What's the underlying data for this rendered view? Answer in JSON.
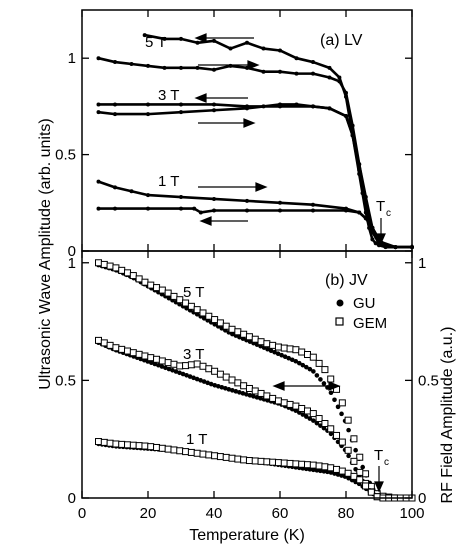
{
  "chart_data": [
    {
      "panel": "(a) LV",
      "type": "line",
      "xlim": [
        0,
        100
      ],
      "ylim": [
        0,
        1.25
      ],
      "yticks": [
        "0",
        "0.5",
        "1"
      ],
      "ylabel": "Ultrasonic Wave Amplitude (arb. units)",
      "annotations": [
        "5 T",
        "3 T",
        "1 T",
        "T",
        "c"
      ],
      "series": [
        {
          "name": "5 T",
          "direction": "cooling",
          "x": [
            19,
            25,
            30,
            35,
            40,
            45,
            50,
            55,
            60,
            65,
            70,
            75,
            78,
            80,
            82,
            84,
            85,
            86,
            87,
            88,
            89,
            90,
            92,
            95,
            100
          ],
          "y": [
            1.12,
            1.1,
            1.1,
            1.08,
            1.09,
            1.05,
            1.08,
            1.05,
            1.04,
            1.0,
            0.98,
            0.95,
            0.9,
            0.8,
            0.6,
            0.4,
            0.3,
            0.2,
            0.12,
            0.06,
            0.04,
            0.03,
            0.02,
            0.02,
            0.02
          ]
        },
        {
          "name": "5 T",
          "direction": "warming",
          "x": [
            5,
            10,
            15,
            20,
            25,
            30,
            35,
            40,
            45,
            50,
            55,
            60,
            65,
            70,
            75,
            78,
            80,
            82,
            84,
            86,
            88,
            90,
            95,
            100
          ],
          "y": [
            1.0,
            0.98,
            0.97,
            0.96,
            0.95,
            0.95,
            0.95,
            0.94,
            0.96,
            0.95,
            0.93,
            0.93,
            0.92,
            0.92,
            0.9,
            0.88,
            0.82,
            0.65,
            0.45,
            0.25,
            0.1,
            0.04,
            0.02,
            0.02
          ]
        },
        {
          "name": "3 T",
          "direction": "cooling",
          "x": [
            5,
            10,
            20,
            30,
            40,
            50,
            60,
            70,
            75,
            80,
            82,
            84,
            86,
            88,
            90,
            95,
            100
          ],
          "y": [
            0.76,
            0.76,
            0.76,
            0.76,
            0.76,
            0.75,
            0.75,
            0.75,
            0.74,
            0.7,
            0.6,
            0.45,
            0.28,
            0.12,
            0.05,
            0.02,
            0.02
          ]
        },
        {
          "name": "3 T",
          "direction": "warming",
          "x": [
            5,
            10,
            20,
            30,
            40,
            50,
            55,
            60,
            65,
            70,
            75,
            80,
            82,
            84,
            86,
            88,
            90,
            95,
            100
          ],
          "y": [
            0.72,
            0.71,
            0.71,
            0.72,
            0.73,
            0.74,
            0.75,
            0.76,
            0.76,
            0.75,
            0.74,
            0.7,
            0.6,
            0.42,
            0.25,
            0.1,
            0.04,
            0.02,
            0.02
          ]
        },
        {
          "name": "1 T",
          "direction": "warming",
          "x": [
            5,
            10,
            15,
            20,
            30,
            40,
            50,
            60,
            70,
            80,
            84,
            86,
            88,
            90,
            92,
            95,
            100
          ],
          "y": [
            0.36,
            0.33,
            0.31,
            0.29,
            0.28,
            0.27,
            0.26,
            0.25,
            0.24,
            0.22,
            0.2,
            0.17,
            0.12,
            0.06,
            0.03,
            0.02,
            0.02
          ]
        },
        {
          "name": "1 T",
          "direction": "cooling",
          "x": [
            5,
            10,
            20,
            30,
            34,
            36,
            40,
            50,
            60,
            70,
            80,
            84,
            86,
            88,
            90,
            92,
            95,
            100
          ],
          "y": [
            0.22,
            0.22,
            0.22,
            0.22,
            0.22,
            0.2,
            0.21,
            0.21,
            0.21,
            0.21,
            0.21,
            0.2,
            0.17,
            0.12,
            0.06,
            0.03,
            0.02,
            0.02
          ]
        }
      ]
    },
    {
      "panel": "(b) JV",
      "type": "scatter",
      "xlim": [
        0,
        100
      ],
      "ylim": [
        0,
        1.05
      ],
      "xticks": [
        "0",
        "20",
        "40",
        "60",
        "80",
        "100"
      ],
      "yticks": [
        "0",
        "0.5",
        "1"
      ],
      "y2ticks": [
        "0",
        "0.5",
        "1"
      ],
      "xlabel": "Temperature (K)",
      "y2label": "RF Field Amplitude (a.u.)",
      "legend": [
        "GU",
        "GEM"
      ],
      "annotations": [
        "5 T",
        "3 T",
        "1 T",
        "T",
        "c"
      ],
      "series": [
        {
          "name": "GU",
          "field": "5 T",
          "x": [
            5,
            10,
            15,
            20,
            25,
            30,
            35,
            40,
            45,
            50,
            55,
            60,
            65,
            70,
            75,
            80,
            83,
            86,
            88,
            90,
            92,
            95,
            100
          ],
          "y": [
            0.99,
            0.97,
            0.94,
            0.9,
            0.86,
            0.82,
            0.78,
            0.74,
            0.7,
            0.67,
            0.64,
            0.61,
            0.58,
            0.54,
            0.46,
            0.32,
            0.2,
            0.1,
            0.04,
            0.01,
            0.0,
            0.0,
            0.0
          ]
        },
        {
          "name": "GEM",
          "field": "5 T",
          "x": [
            5,
            10,
            15,
            20,
            25,
            30,
            35,
            40,
            45,
            50,
            55,
            60,
            65,
            70,
            74,
            78,
            80,
            82,
            84,
            86,
            88,
            90,
            95,
            100
          ],
          "y": [
            1.0,
            0.98,
            0.95,
            0.91,
            0.88,
            0.84,
            0.8,
            0.76,
            0.72,
            0.69,
            0.66,
            0.64,
            0.63,
            0.6,
            0.54,
            0.44,
            0.36,
            0.27,
            0.18,
            0.1,
            0.04,
            0.01,
            0.0,
            0.0
          ]
        },
        {
          "name": "GU",
          "field": "3 T",
          "x": [
            5,
            10,
            20,
            30,
            40,
            50,
            55,
            60,
            65,
            70,
            75,
            80,
            83,
            86,
            88,
            90,
            95,
            100
          ],
          "y": [
            0.66,
            0.63,
            0.58,
            0.53,
            0.48,
            0.44,
            0.42,
            0.4,
            0.37,
            0.33,
            0.28,
            0.2,
            0.12,
            0.05,
            0.02,
            0.0,
            0.0,
            0.0
          ]
        },
        {
          "name": "GEM",
          "field": "3 T",
          "x": [
            5,
            10,
            20,
            30,
            35,
            40,
            50,
            55,
            60,
            65,
            70,
            75,
            80,
            83,
            86,
            88,
            90,
            95,
            100
          ],
          "y": [
            0.67,
            0.64,
            0.6,
            0.56,
            0.57,
            0.54,
            0.47,
            0.44,
            0.41,
            0.39,
            0.36,
            0.3,
            0.22,
            0.14,
            0.06,
            0.02,
            0.0,
            0.0,
            0.0
          ]
        },
        {
          "name": "GU",
          "field": "1 T",
          "x": [
            5,
            10,
            20,
            30,
            40,
            50,
            60,
            70,
            75,
            80,
            84,
            86,
            88,
            90,
            95,
            100
          ],
          "y": [
            0.23,
            0.22,
            0.21,
            0.2,
            0.18,
            0.16,
            0.14,
            0.12,
            0.11,
            0.09,
            0.06,
            0.04,
            0.02,
            0.0,
            0.0,
            0.0
          ]
        },
        {
          "name": "GEM",
          "field": "1 T",
          "x": [
            5,
            10,
            20,
            30,
            40,
            50,
            60,
            70,
            75,
            80,
            84,
            86,
            88,
            90,
            95,
            100
          ],
          "y": [
            0.24,
            0.23,
            0.22,
            0.2,
            0.18,
            0.16,
            0.15,
            0.14,
            0.13,
            0.11,
            0.08,
            0.05,
            0.02,
            0.0,
            0.0,
            0.0
          ]
        }
      ]
    }
  ]
}
